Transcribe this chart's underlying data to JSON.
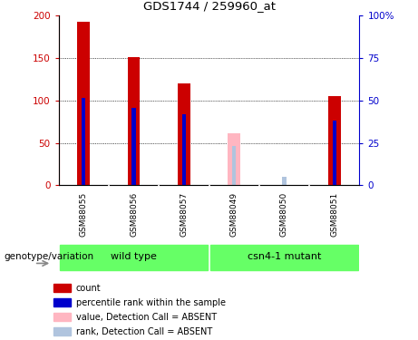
{
  "title": "GDS1744 / 259960_at",
  "samples": [
    "GSM88055",
    "GSM88056",
    "GSM88057",
    "GSM88049",
    "GSM88050",
    "GSM88051"
  ],
  "groups": [
    {
      "name": "wild type",
      "sample_count": 3
    },
    {
      "name": "csn4-1 mutant",
      "sample_count": 3
    }
  ],
  "group_color": "#66ff66",
  "red_values": [
    192,
    151,
    120,
    null,
    null,
    105
  ],
  "blue_values": [
    103,
    91,
    84,
    null,
    null,
    76
  ],
  "pink_values": [
    null,
    null,
    null,
    61,
    null,
    null
  ],
  "lightblue_values": [
    null,
    null,
    null,
    46,
    10,
    null
  ],
  "ylim_left": [
    0,
    200
  ],
  "ylim_right": [
    0,
    100
  ],
  "yticks_left": [
    0,
    50,
    100,
    150,
    200
  ],
  "yticks_right": [
    0,
    25,
    50,
    75,
    100
  ],
  "ytick_labels_left": [
    "0",
    "50",
    "100",
    "150",
    "200"
  ],
  "ytick_labels_right": [
    "0",
    "25",
    "50",
    "75",
    "100%"
  ],
  "red_color": "#cc0000",
  "blue_color": "#0000cc",
  "pink_color": "#ffb6c1",
  "lightblue_color": "#b0c4de",
  "bar_width": 0.25,
  "blue_bar_width": 0.08,
  "gray_label_bg": "#d3d3d3",
  "group_label": "genotype/variation",
  "legend_items": [
    {
      "label": "count",
      "color": "#cc0000"
    },
    {
      "label": "percentile rank within the sample",
      "color": "#0000cc"
    },
    {
      "label": "value, Detection Call = ABSENT",
      "color": "#ffb6c1"
    },
    {
      "label": "rank, Detection Call = ABSENT",
      "color": "#b0c4de"
    }
  ]
}
